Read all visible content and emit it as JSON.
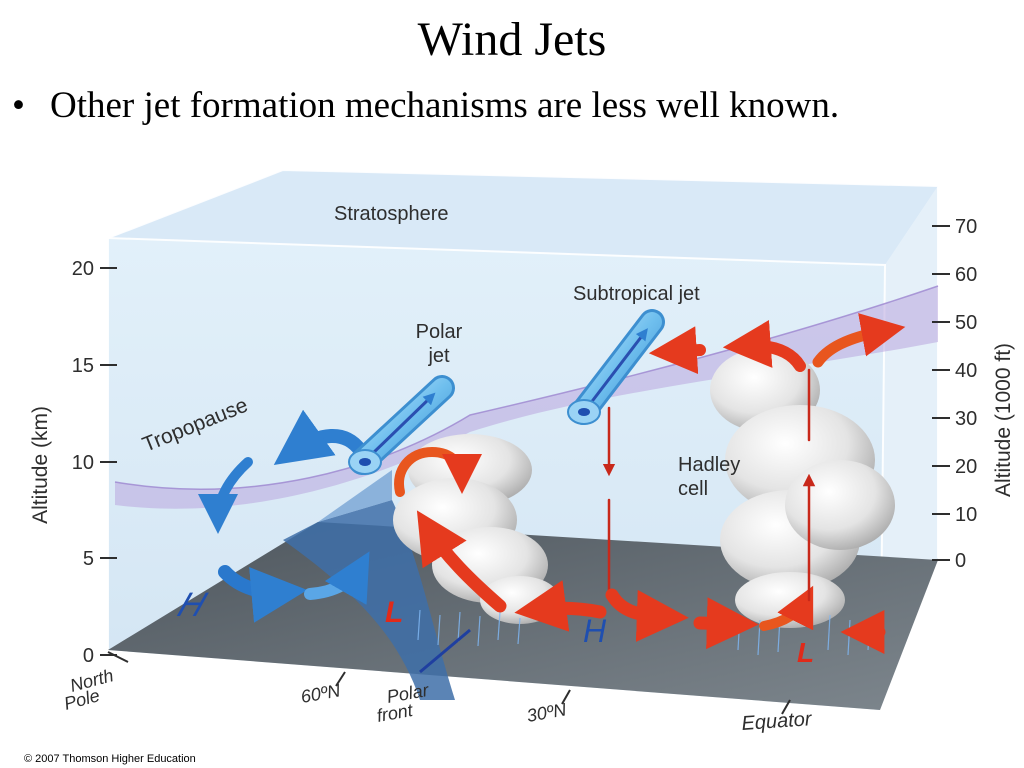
{
  "slide": {
    "title": "Wind Jets",
    "bullet": "Other jet formation mechanisms are less well known."
  },
  "diagram": {
    "labels": {
      "stratosphere": "Stratosphere",
      "tropopause": "Tropopause",
      "subtropical_jet": "Subtropical jet",
      "polar_jet_line1": "Polar",
      "polar_jet_line2": "jet",
      "hadley_line1": "Hadley",
      "hadley_line2": "cell"
    },
    "left_axis": {
      "title": "Altitude (km)",
      "ticks": [
        "0",
        "5",
        "10",
        "15",
        "20"
      ]
    },
    "right_axis": {
      "title": "Altitude (1000 ft)",
      "ticks": [
        "0",
        "10",
        "20",
        "30",
        "40",
        "50",
        "60",
        "70"
      ]
    },
    "ground_labels": {
      "north_pole_line1": "North",
      "north_pole_line2": "Pole",
      "lat60": "60ºN",
      "polar_front_line1": "Polar",
      "polar_front_line2": "front",
      "lat30": "30ºN",
      "equator": "Equator"
    },
    "pressure_markers": {
      "high_polar": "H",
      "low_60": "L",
      "high_30": "H",
      "low_equator": "L"
    },
    "colors": {
      "high_blue": "#1f4fb0",
      "low_red": "#e02a1a",
      "jet_blue": "#7ec8f2",
      "tropopause_purple": "#b9a6df",
      "ground_gray": "#6f7880"
    }
  },
  "credit": "© 2007 Thomson Higher Education"
}
